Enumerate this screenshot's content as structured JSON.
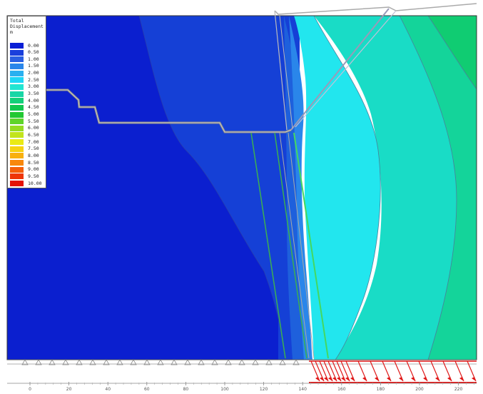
{
  "legend": {
    "title_lines": [
      "Total",
      "Displacement",
      "m"
    ],
    "entries": [
      {
        "label": "0.00",
        "color": "#0a1fd6"
      },
      {
        "label": "0.50",
        "color": "#1a3fdc"
      },
      {
        "label": "1.00",
        "color": "#2a5fe2"
      },
      {
        "label": "1.50",
        "color": "#2a86ea"
      },
      {
        "label": "2.00",
        "color": "#2ab0f0"
      },
      {
        "label": "2.50",
        "color": "#1fd6f6"
      },
      {
        "label": "3.00",
        "color": "#22e6d2"
      },
      {
        "label": "3.50",
        "color": "#18d6a6"
      },
      {
        "label": "4.00",
        "color": "#12d07a"
      },
      {
        "label": "4.50",
        "color": "#10c850"
      },
      {
        "label": "5.00",
        "color": "#22c832"
      },
      {
        "label": "5.50",
        "color": "#5ed42a"
      },
      {
        "label": "6.00",
        "color": "#94dc22"
      },
      {
        "label": "6.50",
        "color": "#c2e41c"
      },
      {
        "label": "7.00",
        "color": "#eaea14"
      },
      {
        "label": "7.50",
        "color": "#f6d210"
      },
      {
        "label": "8.00",
        "color": "#f8b00e"
      },
      {
        "label": "8.50",
        "color": "#f8880c"
      },
      {
        "label": "9.00",
        "color": "#f4600a"
      },
      {
        "label": "9.50",
        "color": "#ee3608"
      },
      {
        "label": "10.00",
        "color": "#e41206"
      }
    ]
  },
  "axis": {
    "ticks": [
      "0",
      "20",
      "40",
      "60",
      "80",
      "100",
      "120",
      "140",
      "160",
      "180",
      "200",
      "220"
    ]
  },
  "colors": {
    "zone_dark_blue": "#0b1fcf",
    "zone_blue_2": "#1540d6",
    "zone_blue_3": "#1e60dc",
    "zone_cyan": "#22e6ee",
    "zone_aqua": "#19dcc6",
    "zone_teal": "#14d49a",
    "zone_green": "#10cc72",
    "boundary_arrow": "#e01818",
    "reinforcement": "#3cb050",
    "slope_line": "#888888"
  }
}
